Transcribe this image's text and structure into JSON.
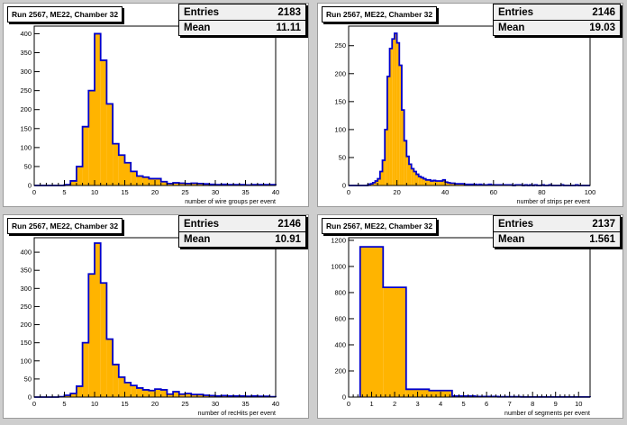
{
  "colors": {
    "canvas": "#cecece",
    "fill": "#ffb400",
    "line": "#0000cc",
    "frame": "#000000"
  },
  "pads": [
    {
      "title": "Run 2567, ME22, Chamber 32",
      "stats": {
        "entries_label": "Entries",
        "entries": "2183",
        "mean_label": "Mean",
        "mean": "11.11"
      },
      "chart_data": {
        "type": "histogram",
        "title": "Run 2567, ME22, Chamber 32",
        "xlabel": "number of wire groups per event",
        "xlim": [
          0,
          40
        ],
        "ylim": [
          0,
          420
        ],
        "xticks": [
          0,
          5,
          10,
          15,
          20,
          25,
          30,
          35,
          40
        ],
        "yticks": [
          0,
          50,
          100,
          150,
          200,
          250,
          300,
          350,
          400
        ],
        "bin_width": 1,
        "x_start": 0,
        "values": [
          0,
          0,
          0,
          0,
          0,
          2,
          12,
          50,
          155,
          250,
          400,
          330,
          215,
          110,
          80,
          60,
          37,
          25,
          22,
          18,
          18,
          10,
          5,
          7,
          6,
          5,
          6,
          5,
          4,
          3,
          2,
          3,
          2,
          2,
          2,
          1,
          2,
          2,
          2,
          2
        ]
      }
    },
    {
      "title": "Run 2567, ME22, Chamber 32",
      "stats": {
        "entries_label": "Entries",
        "entries": "2146",
        "mean_label": "Mean",
        "mean": "19.03"
      },
      "chart_data": {
        "type": "histogram",
        "title": "Run 2567, ME22, Chamber 32",
        "xlabel": "number of strips per event",
        "xlim": [
          0,
          100
        ],
        "ylim": [
          0,
          285
        ],
        "xticks": [
          0,
          20,
          40,
          60,
          80,
          100
        ],
        "yticks": [
          0,
          50,
          100,
          150,
          200,
          250
        ],
        "bin_width": 1,
        "x_start": 0,
        "values": [
          0,
          0,
          0,
          0,
          0,
          0,
          0,
          0,
          2,
          3,
          5,
          8,
          12,
          25,
          45,
          100,
          195,
          245,
          262,
          272,
          255,
          215,
          135,
          80,
          52,
          38,
          30,
          25,
          20,
          16,
          14,
          12,
          10,
          10,
          8,
          9,
          8,
          8,
          8,
          10,
          6,
          5,
          4,
          4,
          3,
          3,
          3,
          3,
          2,
          2,
          2,
          2,
          2,
          1,
          2,
          1,
          1,
          1,
          2,
          1,
          1,
          1,
          1,
          1,
          1,
          1,
          1,
          1,
          0,
          1,
          1,
          1,
          0,
          1,
          0,
          1,
          0,
          1,
          0,
          0,
          1,
          0,
          0,
          1,
          0,
          0,
          0,
          0,
          1,
          0,
          0,
          0,
          0,
          0,
          1,
          0,
          0,
          0,
          0,
          0
        ]
      }
    },
    {
      "title": "Run 2567, ME22, Chamber 32",
      "stats": {
        "entries_label": "Entries",
        "entries": "2146",
        "mean_label": "Mean",
        "mean": "10.91"
      },
      "chart_data": {
        "type": "histogram",
        "title": "Run 2567, ME22, Chamber 32",
        "xlabel": "number of recHits per event",
        "xlim": [
          0,
          40
        ],
        "ylim": [
          0,
          440
        ],
        "xticks": [
          0,
          5,
          10,
          15,
          20,
          25,
          30,
          35,
          40
        ],
        "yticks": [
          0,
          50,
          100,
          150,
          200,
          250,
          300,
          350,
          400
        ],
        "bin_width": 1,
        "x_start": 0,
        "values": [
          0,
          0,
          0,
          0,
          1,
          5,
          10,
          30,
          150,
          340,
          425,
          315,
          160,
          90,
          55,
          40,
          32,
          25,
          20,
          18,
          22,
          20,
          8,
          15,
          8,
          10,
          7,
          7,
          5,
          4,
          3,
          4,
          3,
          3,
          3,
          2,
          3,
          2,
          2,
          1
        ]
      }
    },
    {
      "title": "Run 2567, ME22, Chamber 32",
      "stats": {
        "entries_label": "Entries",
        "entries": "2137",
        "mean_label": "Mean",
        "mean": "1.561"
      },
      "chart_data": {
        "type": "histogram",
        "title": "Run 2567, ME22, Chamber 32",
        "xlabel": "number of segments per event",
        "xlim": [
          0,
          10.5
        ],
        "ylim": [
          0,
          1220
        ],
        "xticks": [
          0,
          1,
          2,
          3,
          4,
          5,
          6,
          7,
          8,
          9,
          10
        ],
        "yticks": [
          0,
          200,
          400,
          600,
          800,
          1000,
          1200
        ],
        "bin_width": 1,
        "x_start": 0.5,
        "values": [
          1150,
          840,
          60,
          50,
          8,
          4,
          2,
          1,
          1,
          1
        ]
      }
    }
  ]
}
